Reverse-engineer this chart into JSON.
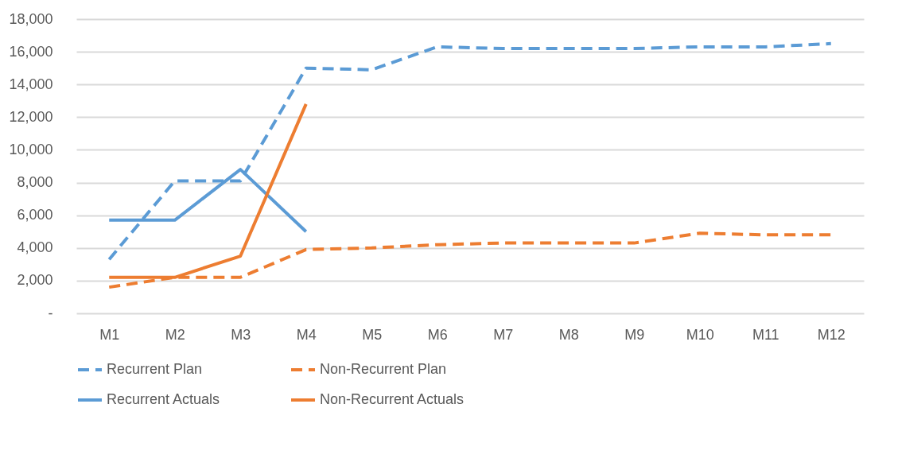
{
  "chart_data": {
    "type": "line",
    "categories": [
      "M1",
      "M2",
      "M3",
      "M4",
      "M5",
      "M6",
      "M7",
      "M8",
      "M9",
      "M10",
      "M11",
      "M12"
    ],
    "ylim": [
      0,
      18000
    ],
    "yticks": [
      {
        "value": 0,
        "label": "-"
      },
      {
        "value": 2000,
        "label": "2,000"
      },
      {
        "value": 4000,
        "label": "4,000"
      },
      {
        "value": 6000,
        "label": "6,000"
      },
      {
        "value": 8000,
        "label": "8,000"
      },
      {
        "value": 10000,
        "label": "10,000"
      },
      {
        "value": 12000,
        "label": "12,000"
      },
      {
        "value": 14000,
        "label": "14,000"
      },
      {
        "value": 16000,
        "label": "16,000"
      },
      {
        "value": 18000,
        "label": "18,000"
      }
    ],
    "grid": "y",
    "legend": "bottom",
    "marker": "none",
    "series": [
      {
        "name": "Recurrent Plan",
        "color": "#5b9bd5",
        "line_style": "dashed",
        "values": [
          3300,
          8100,
          8100,
          15000,
          14900,
          16300,
          16200,
          16200,
          16200,
          16300,
          16300,
          16500
        ]
      },
      {
        "name": "Non-Recurrent Plan",
        "color": "#ed7d31",
        "line_style": "dashed",
        "values": [
          1600,
          2200,
          2200,
          3900,
          4000,
          4200,
          4300,
          4300,
          4300,
          4900,
          4800,
          4800
        ]
      },
      {
        "name": "Recurrent Actuals",
        "color": "#5b9bd5",
        "line_style": "solid",
        "values": [
          5700,
          5700,
          8800,
          5000,
          null,
          null,
          null,
          null,
          null,
          null,
          null,
          null
        ]
      },
      {
        "name": "Non-Recurrent Actuals",
        "color": "#ed7d31",
        "line_style": "solid",
        "values": [
          2200,
          2200,
          3500,
          12800,
          null,
          null,
          null,
          null,
          null,
          null,
          null,
          null
        ]
      }
    ]
  }
}
